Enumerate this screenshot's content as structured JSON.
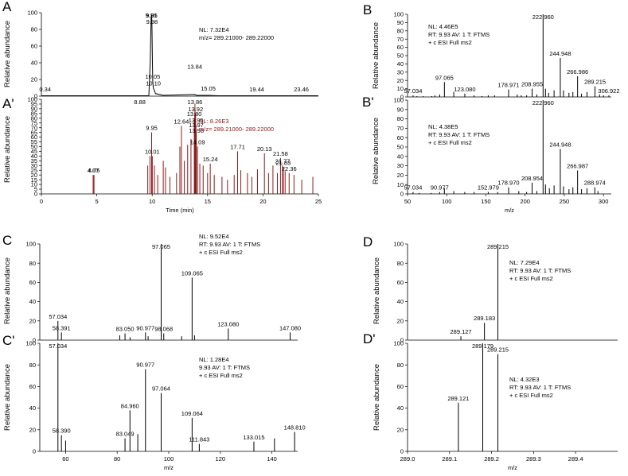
{
  "chart_data": [
    {
      "id": "A",
      "panel_label": "A",
      "type": "line",
      "xlim": [
        0,
        25
      ],
      "ylim": [
        0,
        100
      ],
      "yticks": [
        "0",
        "20",
        "40",
        "60",
        "80",
        "100"
      ],
      "xticks": [],
      "xlabel": "",
      "ylabel": "Relative abundance",
      "color": "#000000",
      "info": [
        "NL: 7.32E4",
        "m/z= 289.21000- 289.22000"
      ],
      "trace": [
        [
          0,
          0.5
        ],
        [
          9.7,
          0.5
        ],
        [
          9.82,
          40
        ],
        [
          9.91,
          94
        ],
        [
          9.95,
          97
        ],
        [
          9.98,
          84
        ],
        [
          10.02,
          40
        ],
        [
          10.05,
          18
        ],
        [
          10.1,
          10
        ],
        [
          10.3,
          3
        ],
        [
          11,
          1
        ],
        [
          13.84,
          2
        ],
        [
          14,
          1
        ],
        [
          15.05,
          1
        ],
        [
          16,
          0.5
        ],
        [
          25,
          0.5
        ]
      ],
      "labels": [
        {
          "x": 0.34,
          "y": 3,
          "text": "0.34"
        },
        {
          "x": 9.91,
          "y": 94,
          "text": "9.91"
        },
        {
          "x": 9.95,
          "y": 97,
          "text": "9.95"
        },
        {
          "x": 9.98,
          "y": 84,
          "text": "9.98"
        },
        {
          "x": 10.05,
          "y": 18,
          "text": "10.05"
        },
        {
          "x": 10.1,
          "y": 10,
          "text": "10.10"
        },
        {
          "x": 13.84,
          "y": 30,
          "text": "13.84"
        },
        {
          "x": 15.05,
          "y": 4,
          "text": "15.05"
        },
        {
          "x": 19.44,
          "y": 3,
          "text": "19.44"
        },
        {
          "x": 23.46,
          "y": 3,
          "text": "23.46"
        }
      ]
    },
    {
      "id": "A2",
      "panel_label": "A'",
      "type": "bar",
      "xlim": [
        0,
        25
      ],
      "ylim": [
        0,
        100
      ],
      "yticks": [
        "0",
        "5",
        "10",
        "15",
        "20",
        "25",
        "30",
        "35",
        "40",
        "45",
        "50",
        "55",
        "60",
        "65",
        "70",
        "75",
        "80",
        "85",
        "90",
        "95",
        "100"
      ],
      "xticks": [
        "0",
        "5",
        "10",
        "15",
        "20",
        "25"
      ],
      "xlabel": "Time (min)",
      "ylabel": "Relative abundance",
      "color": "#8b1a1a",
      "info": [
        "NL: 8.26E3",
        "m/z= 289.21000- 289.22000"
      ],
      "peaks": [
        [
          4.67,
          20
        ],
        [
          4.75,
          20
        ],
        [
          9.6,
          30
        ],
        [
          9.8,
          40
        ],
        [
          9.95,
          65
        ],
        [
          10.01,
          40
        ],
        [
          10.2,
          30
        ],
        [
          10.5,
          20
        ],
        [
          11,
          35
        ],
        [
          11.2,
          28
        ],
        [
          11.6,
          18
        ],
        [
          12.2,
          22
        ],
        [
          12.5,
          50
        ],
        [
          12.64,
          72
        ],
        [
          12.9,
          35
        ],
        [
          13.2,
          52
        ],
        [
          13.5,
          58
        ],
        [
          13.8,
          80
        ],
        [
          13.84,
          86
        ],
        [
          13.86,
          95
        ],
        [
          13.92,
          85
        ],
        [
          13.95,
          73
        ],
        [
          13.97,
          68
        ],
        [
          13.98,
          62
        ],
        [
          14.09,
          50
        ],
        [
          14.3,
          32
        ],
        [
          14.6,
          30
        ],
        [
          15.0,
          22
        ],
        [
          15.24,
          32
        ],
        [
          15.6,
          20
        ],
        [
          16.3,
          18
        ],
        [
          16.8,
          15
        ],
        [
          17.4,
          20
        ],
        [
          17.71,
          45
        ],
        [
          18.0,
          25
        ],
        [
          18.6,
          22
        ],
        [
          19.0,
          18
        ],
        [
          19.5,
          26
        ],
        [
          20.13,
          43
        ],
        [
          20.5,
          22
        ],
        [
          20.9,
          30
        ],
        [
          21.3,
          22
        ],
        [
          21.58,
          38
        ],
        [
          21.77,
          30
        ],
        [
          21.83,
          28
        ],
        [
          22.0,
          24
        ],
        [
          22.36,
          22
        ],
        [
          22.8,
          20
        ],
        [
          23.5,
          15
        ],
        [
          24.5,
          18
        ]
      ],
      "labels": [
        {
          "x": 4.67,
          "y": 20,
          "text": "4.67"
        },
        {
          "x": 4.75,
          "y": 20,
          "text": "4.75"
        },
        {
          "x": 8.88,
          "y": 100,
          "text": "8.88"
        },
        {
          "x": 9.95,
          "y": 65,
          "text": "9.95"
        },
        {
          "x": 10.01,
          "y": 40,
          "text": "10.01"
        },
        {
          "x": 12.64,
          "y": 72,
          "text": "12.64"
        },
        {
          "x": 13.8,
          "y": 80,
          "text": "13.80"
        },
        {
          "x": 13.86,
          "y": 95,
          "text": "13.86"
        },
        {
          "x": 13.92,
          "y": 85,
          "text": "13.92"
        },
        {
          "x": 13.95,
          "y": 73,
          "text": "13.95"
        },
        {
          "x": 13.97,
          "y": 68,
          "text": "13.97"
        },
        {
          "x": 13.98,
          "y": 62,
          "text": "13.98"
        },
        {
          "x": 14.09,
          "y": 50,
          "text": "14.09"
        },
        {
          "x": 15.24,
          "y": 32,
          "text": "15.24"
        },
        {
          "x": 17.71,
          "y": 45,
          "text": "17.71"
        },
        {
          "x": 20.13,
          "y": 43,
          "text": "20.13"
        },
        {
          "x": 21.58,
          "y": 38,
          "text": "21.58"
        },
        {
          "x": 21.77,
          "y": 30,
          "text": "21.77"
        },
        {
          "x": 21.83,
          "y": 28,
          "text": "21.83"
        },
        {
          "x": 22.36,
          "y": 22,
          "text": "22.36"
        }
      ]
    },
    {
      "id": "B",
      "panel_label": "B",
      "type": "bar",
      "xlim": [
        50,
        310
      ],
      "ylim": [
        0,
        100
      ],
      "yticks": [
        "0",
        "10",
        "20",
        "30",
        "40",
        "50",
        "60",
        "70",
        "80",
        "90",
        "100"
      ],
      "xticks": [],
      "xlabel": "",
      "ylabel": "Relative abundance",
      "color": "#000000",
      "info": [
        "NL: 4.46E5",
        "RT: 9.93  AV: 1 T: FTMS",
        "+ c ESI Full ms2"
      ],
      "peaks": [
        [
          57.034,
          2
        ],
        [
          62,
          1
        ],
        [
          70,
          1
        ],
        [
          81,
          1
        ],
        [
          85,
          2
        ],
        [
          91,
          3
        ],
        [
          97.065,
          18
        ],
        [
          109,
          6
        ],
        [
          123.08,
          4
        ],
        [
          135,
          2
        ],
        [
          145,
          1
        ],
        [
          153,
          2
        ],
        [
          161,
          2
        ],
        [
          178.971,
          9
        ],
        [
          190,
          3
        ],
        [
          195,
          2
        ],
        [
          202,
          2
        ],
        [
          208.955,
          10
        ],
        [
          215,
          3
        ],
        [
          222.96,
          100
        ],
        [
          226,
          10
        ],
        [
          230,
          5
        ],
        [
          237,
          8
        ],
        [
          244.948,
          47
        ],
        [
          249,
          8
        ],
        [
          256,
          5
        ],
        [
          261,
          6
        ],
        [
          266.986,
          25
        ],
        [
          272,
          4
        ],
        [
          279,
          6
        ],
        [
          289.215,
          13
        ],
        [
          295,
          3
        ],
        [
          300,
          2
        ],
        [
          306.922,
          2
        ]
      ],
      "labels": [
        {
          "x": 57.034,
          "y": 2,
          "text": "57.034"
        },
        {
          "x": 97.065,
          "y": 18,
          "text": "97.065"
        },
        {
          "x": 123.08,
          "y": 4,
          "text": "123.080"
        },
        {
          "x": 178.971,
          "y": 9,
          "text": "178.971"
        },
        {
          "x": 208.955,
          "y": 10,
          "text": "208.955"
        },
        {
          "x": 222.96,
          "y": 100,
          "text": "222.960"
        },
        {
          "x": 244.948,
          "y": 47,
          "text": "244.948"
        },
        {
          "x": 266.986,
          "y": 25,
          "text": "266.986"
        },
        {
          "x": 289.215,
          "y": 13,
          "text": "289.215"
        },
        {
          "x": 306.922,
          "y": 2,
          "text": "306.922"
        }
      ]
    },
    {
      "id": "B2",
      "panel_label": "B'",
      "type": "bar",
      "xlim": [
        50,
        310
      ],
      "ylim": [
        0,
        100
      ],
      "yticks": [
        "0",
        "10",
        "20",
        "30",
        "40",
        "50",
        "60",
        "70",
        "80",
        "90",
        "100"
      ],
      "xticks": [
        "50",
        "100",
        "150",
        "200",
        "250",
        "300"
      ],
      "xlabel": "m/z",
      "ylabel": "Relative abundance",
      "color": "#000000",
      "info": [
        "NL: 4.38E5",
        "RT: 9.93  AV: 1 T: FTMS",
        "+ c ESI Full ms2"
      ],
      "peaks": [
        [
          57.034,
          2
        ],
        [
          65,
          1
        ],
        [
          80,
          1
        ],
        [
          90.977,
          2
        ],
        [
          97,
          6
        ],
        [
          109,
          3
        ],
        [
          123,
          2
        ],
        [
          135,
          2
        ],
        [
          152.979,
          2
        ],
        [
          165,
          2
        ],
        [
          178.97,
          7
        ],
        [
          192,
          3
        ],
        [
          202,
          2
        ],
        [
          208.954,
          12
        ],
        [
          215,
          3
        ],
        [
          222.96,
          100
        ],
        [
          226,
          10
        ],
        [
          231,
          6
        ],
        [
          237,
          9
        ],
        [
          244.948,
          48
        ],
        [
          249,
          8
        ],
        [
          256,
          5
        ],
        [
          261,
          7
        ],
        [
          266.987,
          25
        ],
        [
          272,
          5
        ],
        [
          279,
          6
        ],
        [
          288.974,
          7
        ],
        [
          293,
          3
        ]
      ],
      "labels": [
        {
          "x": 57.034,
          "y": 2,
          "text": "57.034"
        },
        {
          "x": 90.977,
          "y": 2,
          "text": "90.977"
        },
        {
          "x": 152.979,
          "y": 2,
          "text": "152.979"
        },
        {
          "x": 178.97,
          "y": 7,
          "text": "178.970"
        },
        {
          "x": 208.954,
          "y": 12,
          "text": "208.954"
        },
        {
          "x": 222.96,
          "y": 100,
          "text": "222.960"
        },
        {
          "x": 244.948,
          "y": 48,
          "text": "244.948"
        },
        {
          "x": 266.987,
          "y": 25,
          "text": "266.987"
        },
        {
          "x": 288.974,
          "y": 7,
          "text": "288.974"
        }
      ]
    },
    {
      "id": "C",
      "panel_label": "C",
      "type": "bar",
      "xlim": [
        50,
        150
      ],
      "ylim": [
        0,
        100
      ],
      "yticks": [
        "0",
        "20",
        "40",
        "60",
        "80",
        "100"
      ],
      "xticks": [],
      "xlabel": "",
      "ylabel": "Relative abundance",
      "color": "#000000",
      "info": [
        "NL: 9.52E4",
        "RT: 9.93  AV: 1 T: FTMS",
        "+ c ESI Full ms2"
      ],
      "peaks": [
        [
          57.034,
          20
        ],
        [
          58.391,
          8
        ],
        [
          81,
          5
        ],
        [
          83.05,
          7
        ],
        [
          85,
          3
        ],
        [
          90.977,
          8
        ],
        [
          92,
          4
        ],
        [
          97.065,
          100
        ],
        [
          98.068,
          7
        ],
        [
          105,
          4
        ],
        [
          109.065,
          65
        ],
        [
          110,
          5
        ],
        [
          123.08,
          12
        ],
        [
          147.08,
          8
        ]
      ],
      "labels": [
        {
          "x": 57.034,
          "y": 20,
          "text": "57.034"
        },
        {
          "x": 58.391,
          "y": 8,
          "text": "58.391"
        },
        {
          "x": 83.05,
          "y": 7,
          "text": "83.050"
        },
        {
          "x": 90.977,
          "y": 8,
          "text": "90.977"
        },
        {
          "x": 97.065,
          "y": 100,
          "text": "97.065"
        },
        {
          "x": 98.068,
          "y": 7,
          "text": "98.068"
        },
        {
          "x": 109.065,
          "y": 65,
          "text": "109.065"
        },
        {
          "x": 123.08,
          "y": 12,
          "text": "123.080"
        },
        {
          "x": 147.08,
          "y": 8,
          "text": "147.080"
        }
      ]
    },
    {
      "id": "C2",
      "panel_label": "C'",
      "type": "bar",
      "xlim": [
        50,
        150
      ],
      "ylim": [
        0,
        100
      ],
      "yticks": [
        "0",
        "20",
        "40",
        "60",
        "80",
        "100"
      ],
      "xticks": [
        "60",
        "80",
        "100",
        "120",
        "140"
      ],
      "xlabel": "m/z",
      "ylabel": "Relative abundance",
      "color": "#000000",
      "info": [
        "NL: 1.28E4",
        "9.93  AV: 1 T: FTMS",
        "+ c ESI Full ms2"
      ],
      "peaks": [
        [
          57.034,
          100
        ],
        [
          58.39,
          15
        ],
        [
          60,
          10
        ],
        [
          83.049,
          12
        ],
        [
          84.96,
          38
        ],
        [
          88,
          16
        ],
        [
          90.977,
          76
        ],
        [
          97.064,
          54
        ],
        [
          109.064,
          31
        ],
        [
          111.843,
          7
        ],
        [
          133.015,
          9
        ],
        [
          141,
          12
        ],
        [
          148.81,
          18
        ]
      ],
      "labels": [
        {
          "x": 57.034,
          "y": 100,
          "text": "57.034"
        },
        {
          "x": 58.39,
          "y": 15,
          "text": "58.390"
        },
        {
          "x": 83.049,
          "y": 12,
          "text": "83.049"
        },
        {
          "x": 84.96,
          "y": 38,
          "text": "84.960"
        },
        {
          "x": 90.977,
          "y": 76,
          "text": "90.977"
        },
        {
          "x": 97.064,
          "y": 54,
          "text": "97.064"
        },
        {
          "x": 109.064,
          "y": 31,
          "text": "109.064"
        },
        {
          "x": 111.843,
          "y": 7,
          "text": "111.843"
        },
        {
          "x": 133.015,
          "y": 9,
          "text": "133.015"
        },
        {
          "x": 148.81,
          "y": 18,
          "text": "148.810"
        }
      ]
    },
    {
      "id": "D",
      "panel_label": "D",
      "type": "bar",
      "xlim": [
        289.0,
        289.5
      ],
      "ylim": [
        0,
        100
      ],
      "yticks": [
        "0",
        "20",
        "40",
        "60",
        "80",
        "100"
      ],
      "xticks": [],
      "xlabel": "",
      "ylabel": "Relative abundance",
      "color": "#000000",
      "info": [
        "NL: 7.29E4",
        "RT: 9.93  AV: 1 T: FTMS",
        "+ c ESI Full ms2"
      ],
      "peaks": [
        [
          289.127,
          4
        ],
        [
          289.183,
          18
        ],
        [
          289.215,
          100
        ]
      ],
      "labels": [
        {
          "x": 289.127,
          "y": 4,
          "text": "289.127"
        },
        {
          "x": 289.183,
          "y": 18,
          "text": "289.183"
        },
        {
          "x": 289.215,
          "y": 100,
          "text": "289.215"
        }
      ]
    },
    {
      "id": "D2",
      "panel_label": "D'",
      "type": "bar",
      "xlim": [
        289.0,
        289.5
      ],
      "ylim": [
        0,
        100
      ],
      "yticks": [
        "0",
        "20",
        "40",
        "60",
        "80",
        "100"
      ],
      "xticks": [
        "289.0",
        "289.1",
        "289.2",
        "289.3",
        "289.4"
      ],
      "xlabel": "m/z",
      "ylabel": "Relative abundance",
      "color": "#000000",
      "info": [
        "NL: 4.32E3",
        "RT: 9.93  AV: 1 T: FTMS",
        "+ c ESI Full ms2"
      ],
      "peaks": [
        [
          289.121,
          45
        ],
        [
          289.179,
          100
        ],
        [
          289.215,
          90
        ]
      ],
      "labels": [
        {
          "x": 289.121,
          "y": 45,
          "text": "289.121"
        },
        {
          "x": 289.179,
          "y": 100,
          "text": "289.179"
        },
        {
          "x": 289.215,
          "y": 90,
          "text": "289.215"
        }
      ]
    }
  ]
}
